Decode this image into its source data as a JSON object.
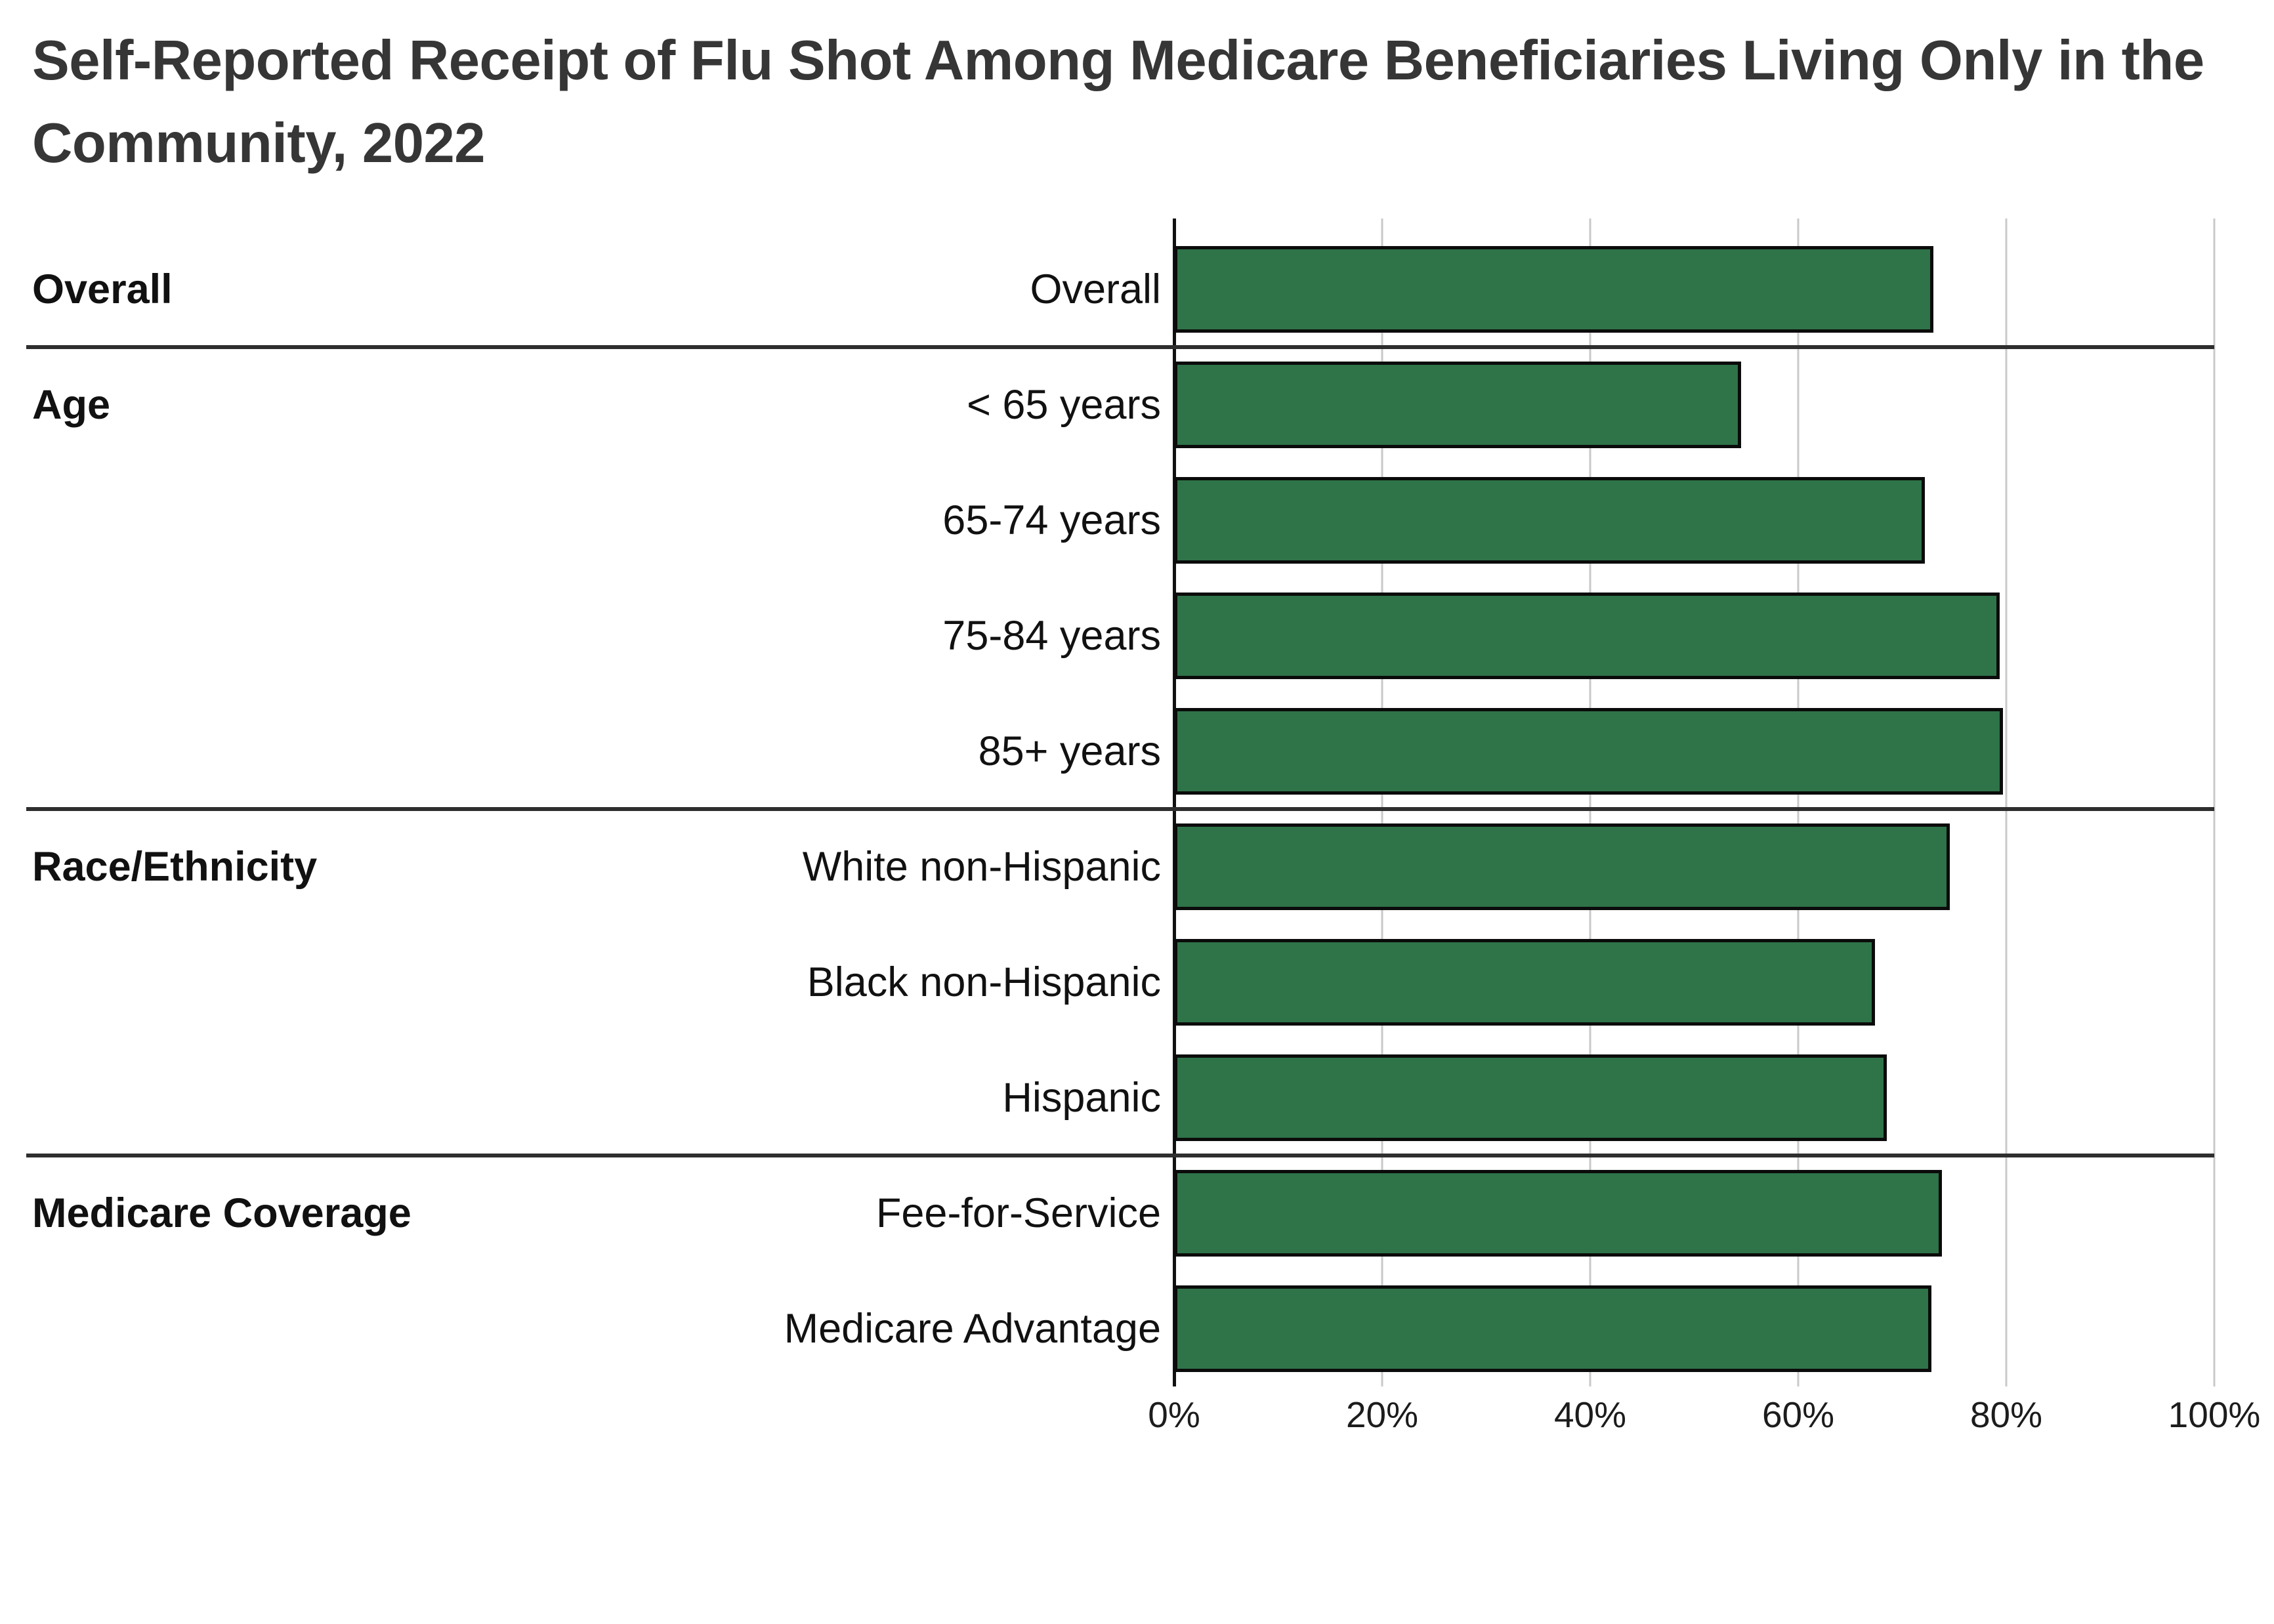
{
  "title": "Self-Reported Receipt of Flu Shot Among Medicare Beneficiaries Living Only in the Community, 2022",
  "title_lines": [
    "Self-Reported Receipt of Flu Shot Among Medicare Beneficiaries Living Only in the",
    "Community, 2022"
  ],
  "chart_data": {
    "type": "bar",
    "orientation": "horizontal",
    "title": "Self-Reported Receipt of Flu Shot Among Medicare Beneficiaries Living Only in the Community, 2022",
    "xlabel": "",
    "ylabel": "",
    "xlim": [
      0,
      100
    ],
    "x_ticks": [
      "0%",
      "20%",
      "40%",
      "60%",
      "80%",
      "100%"
    ],
    "grid": true,
    "legend": false,
    "bar_color": "#2f7349",
    "bar_border_color": "#0b0b0b",
    "gridline_color": "#c9c9c9",
    "categories": [
      "Overall",
      "< 65 years",
      "65-74 years",
      "75-84 years",
      "85+ years",
      "White non-Hispanic",
      "Black non-Hispanic",
      "Hispanic",
      "Fee-for-Service",
      "Medicare Advantage"
    ],
    "values": [
      73,
      54.5,
      72.2,
      79.4,
      79.7,
      74.6,
      67.4,
      68.5,
      73.8,
      72.8
    ],
    "groups": [
      {
        "label": "Overall",
        "rows": [
          {
            "label": "Overall",
            "value": 73
          }
        ]
      },
      {
        "label": "Age",
        "rows": [
          {
            "label": "< 65 years",
            "value": 54.5
          },
          {
            "label": "65-74 years",
            "value": 72.2
          },
          {
            "label": "75-84 years",
            "value": 79.4
          },
          {
            "label": "85+ years",
            "value": 79.7
          }
        ]
      },
      {
        "label": "Race/Ethnicity",
        "rows": [
          {
            "label": "White non-Hispanic",
            "value": 74.6
          },
          {
            "label": "Black non-Hispanic",
            "value": 67.4
          },
          {
            "label": "Hispanic",
            "value": 68.5
          }
        ]
      },
      {
        "label": "Medicare Coverage",
        "rows": [
          {
            "label": "Fee-for-Service",
            "value": 73.8
          },
          {
            "label": "Medicare Advantage",
            "value": 72.8
          }
        ]
      }
    ]
  }
}
